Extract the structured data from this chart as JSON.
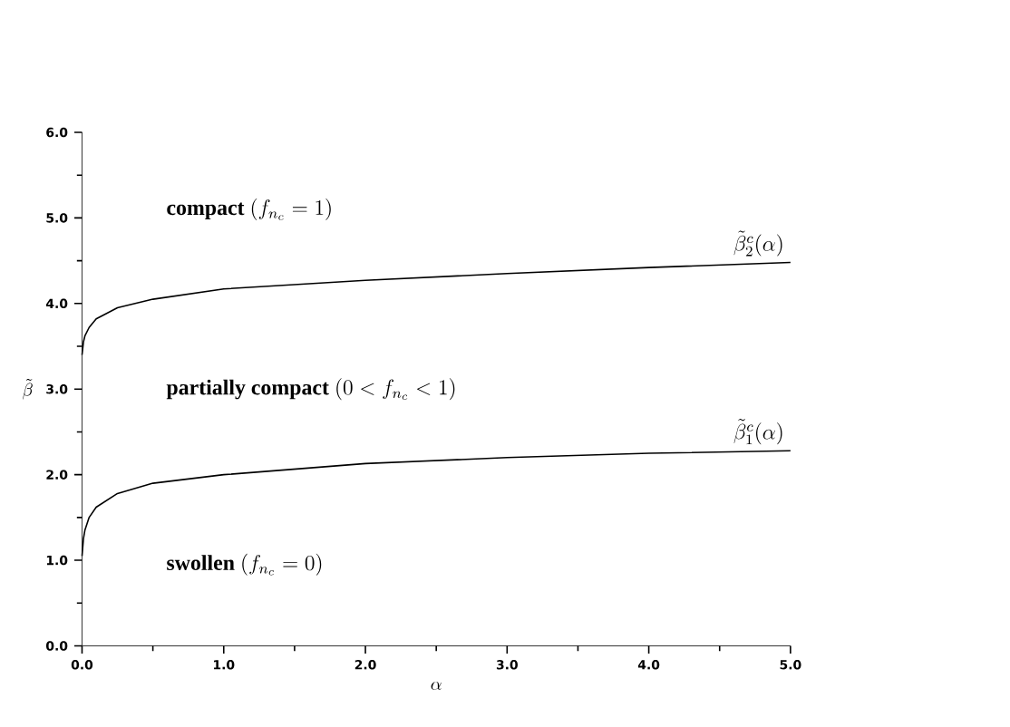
{
  "chart_data": {
    "type": "line",
    "xlabel": "\\alpha",
    "ylabel": "\\tilde{\\beta}",
    "xlim": [
      0,
      5
    ],
    "ylim": [
      0,
      6
    ],
    "xticks": [
      {
        "value": 0,
        "label": "0.0"
      },
      {
        "value": 1,
        "label": "1.0"
      },
      {
        "value": 2,
        "label": "2.0"
      },
      {
        "value": 3,
        "label": "3.0"
      },
      {
        "value": 4,
        "label": "4.0"
      },
      {
        "value": 5,
        "label": "5.0"
      }
    ],
    "yticks": [
      {
        "value": 0,
        "label": "0.0"
      },
      {
        "value": 1,
        "label": "1.0"
      },
      {
        "value": 2,
        "label": "2.0"
      },
      {
        "value": 3,
        "label": "3.0"
      },
      {
        "value": 4,
        "label": "4.0"
      },
      {
        "value": 5,
        "label": "5.0"
      },
      {
        "value": 6,
        "label": "6.0"
      }
    ],
    "x": [
      0,
      0.01,
      0.02,
      0.05,
      0.1,
      0.25,
      0.5,
      1,
      2,
      3,
      4,
      5
    ],
    "series": [
      {
        "name": "\\tilde{\\beta}_1^c(\\alpha)",
        "color": "#000000",
        "values": [
          1.05,
          1.25,
          1.35,
          1.5,
          1.62,
          1.78,
          1.9,
          2.0,
          2.13,
          2.2,
          2.25,
          2.28
        ]
      },
      {
        "name": "\\tilde{\\beta}_2^c(\\alpha)",
        "color": "#000000",
        "values": [
          3.4,
          3.55,
          3.62,
          3.72,
          3.82,
          3.95,
          4.05,
          4.17,
          4.27,
          4.35,
          4.42,
          4.48
        ]
      }
    ],
    "annotations": [
      "\\mbox{\\bfseries compact }(f_{n_c}=1)",
      "\\mbox{\\bfseries partially compact }(0<f_{n_c}<1)",
      "\\mbox{\\bfseries swollen }(f_{n_c}=0)"
    ],
    "line_style": "solid",
    "marker": "none",
    "grid": false,
    "legend": false
  }
}
